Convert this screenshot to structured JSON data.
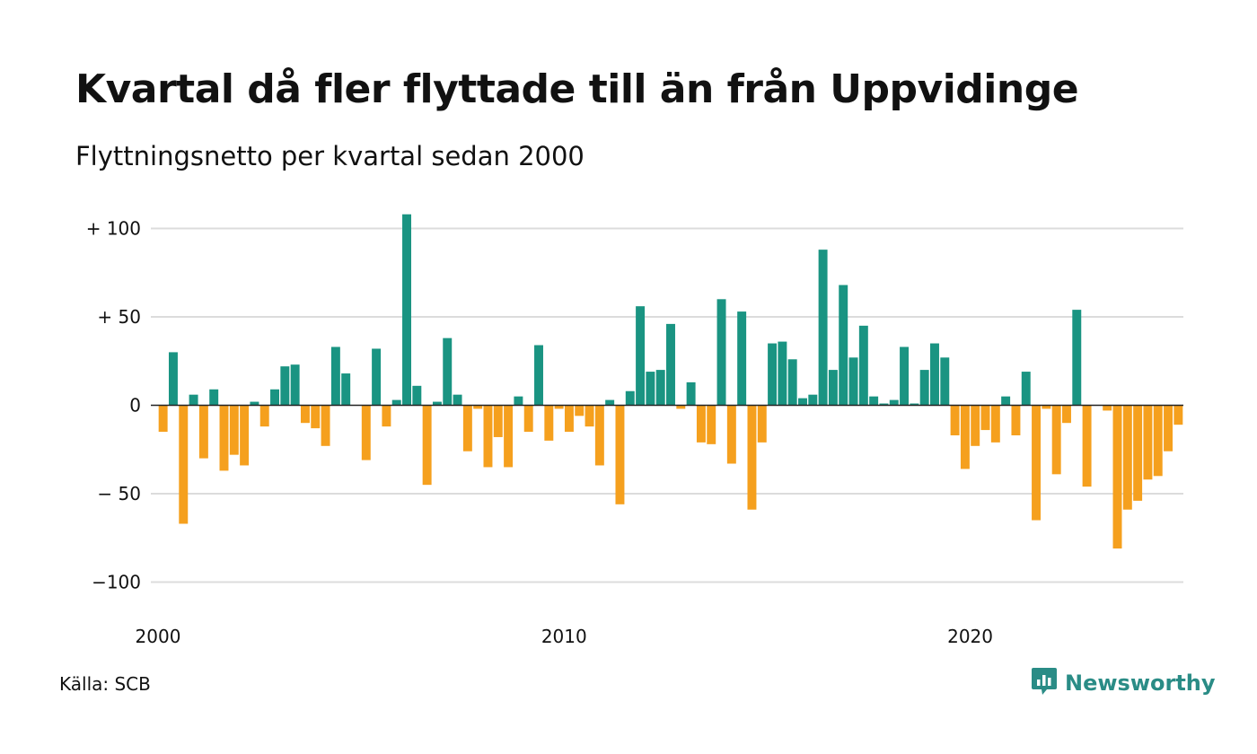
{
  "header": {
    "title": "Kvartal då fler flyttade till än från Uppvidinge",
    "subtitle": "Flyttningsnetto per kvartal sedan 2000"
  },
  "footer": {
    "source": "Källa: SCB",
    "brand": "Newsworthy",
    "brand_icon": "bar-chart-speech-bubble-icon"
  },
  "colors": {
    "positive": "#1a9482",
    "negative": "#f5a01e",
    "grid": "#dcdcdc",
    "brand": "#2a8c86"
  },
  "chart_data": {
    "type": "bar",
    "title": "Kvartal då fler flyttade till än från Uppvidinge",
    "subtitle": "Flyttningsnetto per kvartal sedan 2000",
    "x_start": "2000 Q1",
    "x_ticks": [
      "2000",
      "2010",
      "2020"
    ],
    "y_ticks": [
      {
        "value": 100,
        "label": "+ 100"
      },
      {
        "value": 50,
        "label": "+  50"
      },
      {
        "value": 0,
        "label": "0"
      },
      {
        "value": -50,
        "label": "− 50"
      },
      {
        "value": -100,
        "label": "−100"
      }
    ],
    "ylim": [
      -115,
      110
    ],
    "grid": true,
    "values": [
      -15,
      30,
      -67,
      6,
      -30,
      9,
      -37,
      -28,
      -34,
      2,
      -12,
      9,
      22,
      23,
      -10,
      -13,
      -23,
      33,
      18,
      0,
      -31,
      32,
      -12,
      3,
      108,
      11,
      -45,
      2,
      38,
      6,
      -26,
      -2,
      -35,
      -18,
      -35,
      5,
      -15,
      34,
      -20,
      -2,
      -15,
      -6,
      -12,
      -34,
      3,
      -56,
      8,
      56,
      19,
      20,
      46,
      -2,
      13,
      -21,
      -22,
      60,
      -33,
      53,
      -59,
      -21,
      35,
      36,
      26,
      4,
      6,
      88,
      20,
      68,
      27,
      45,
      5,
      1,
      3,
      33,
      1,
      20,
      35,
      27,
      -17,
      -36,
      -23,
      -14,
      -21,
      5,
      -17,
      19,
      -65,
      -2,
      -39,
      -10,
      54,
      -46,
      0,
      -3,
      -81,
      -59,
      -54,
      -42,
      -40,
      -26,
      -11
    ]
  }
}
